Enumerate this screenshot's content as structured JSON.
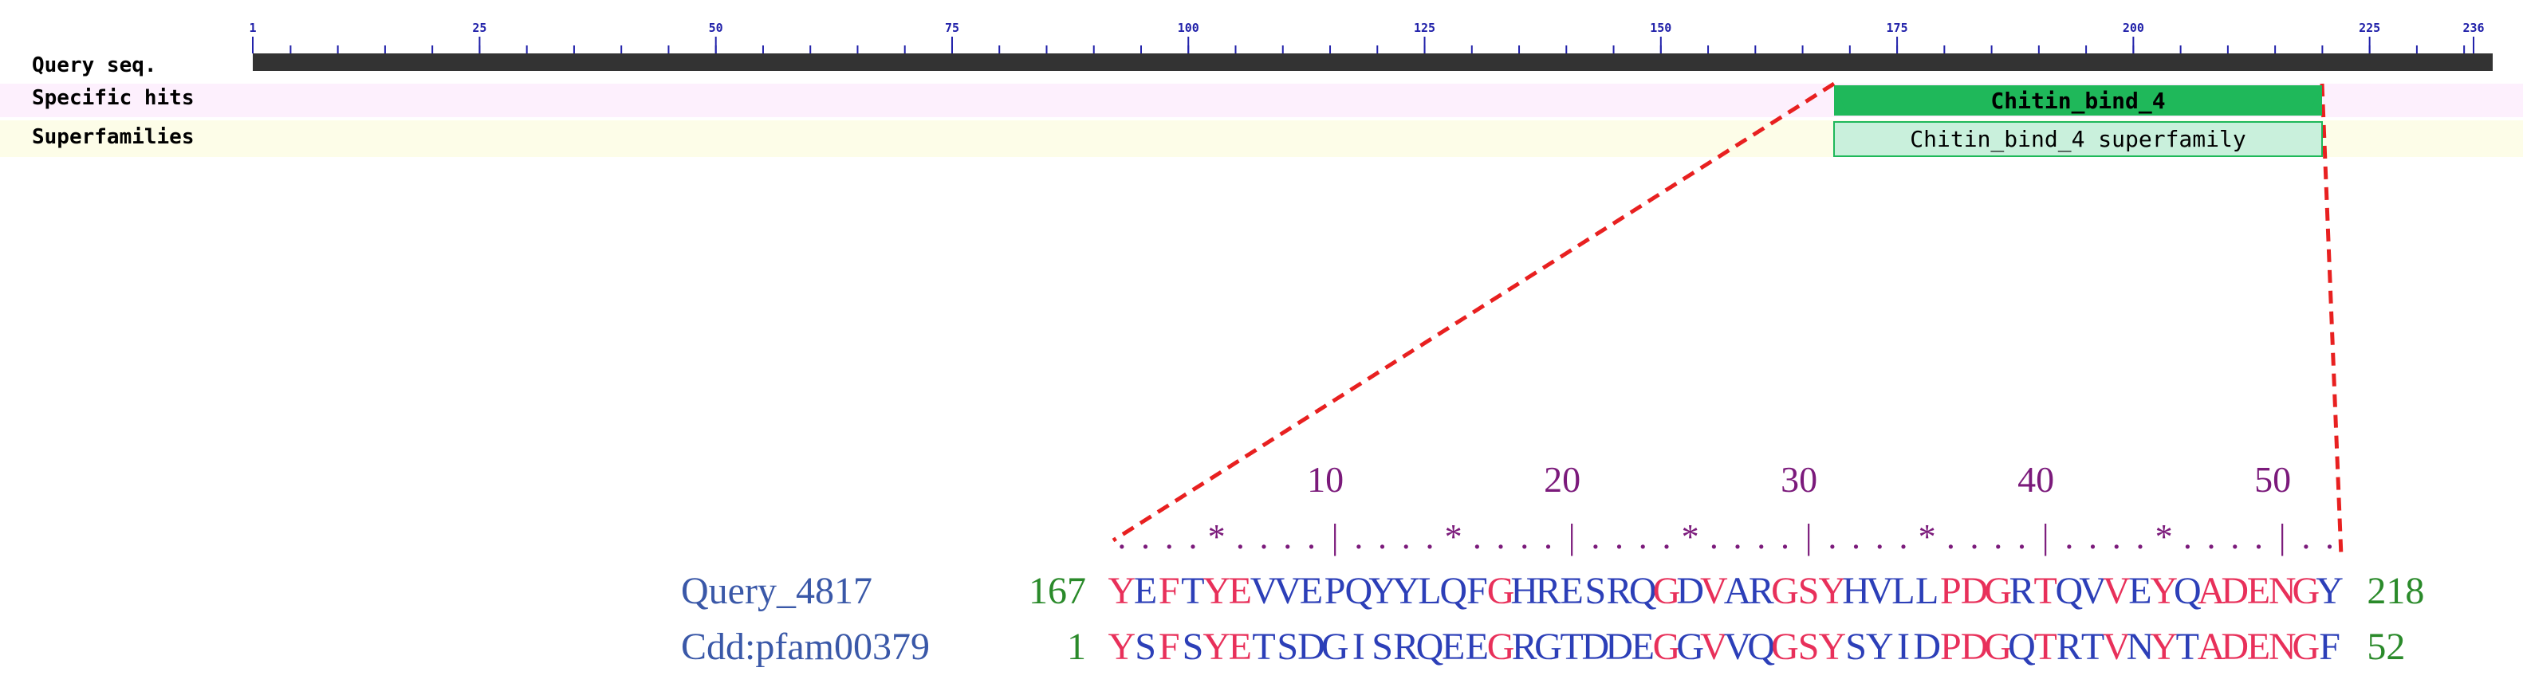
{
  "overview": {
    "ruler_labels": [
      1,
      25,
      50,
      75,
      100,
      125,
      150,
      175,
      200,
      225,
      236
    ],
    "tracks": [
      "Query seq.",
      "Specific hits",
      "Superfamilies"
    ],
    "specific_hit": "Chitin_bind_4",
    "superfamily": "Chitin_bind_4 superfamily"
  },
  "alignment": {
    "ruler_numbers": [
      10,
      20,
      30,
      40,
      50
    ],
    "ruler_marks": "....*....|....*....|....*....|....*....|....*....|..",
    "rows": [
      {
        "name": "Query_4817",
        "start": 167,
        "sequence": "YEFTYEVVEPQYYLQFGHRESRQGDVARGSYHVLLPDGRTQVVEYQADENGY",
        "end": 218
      },
      {
        "name": "Cdd:pfam00379",
        "start": 1,
        "sequence": "YSFSYETSDGISRQEEGRGTDDEGGVVQGSYSYIDPDGQTRTVNYTADENGF",
        "end": 52
      }
    ]
  }
}
